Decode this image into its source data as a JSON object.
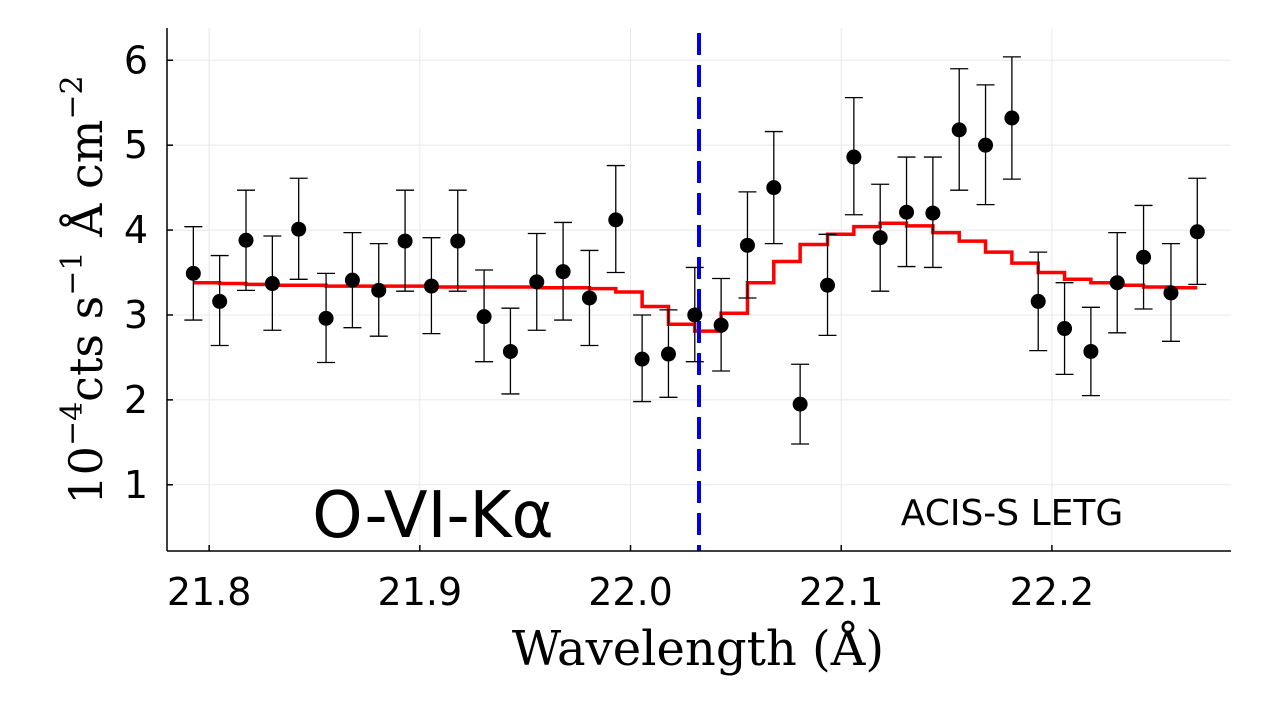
{
  "chart_data": {
    "type": "scatter",
    "title": "",
    "xlabel": "Wavelength (Å)",
    "ylabel": {
      "prefix": "10",
      "prefix_exp": "−4",
      "main": "cts s",
      "main_exp": "−1",
      "rest": " Å cm",
      "rest_exp": "−2"
    },
    "xlim": [
      21.78,
      22.285
    ],
    "ylim": [
      0.22,
      6.38
    ],
    "x_ticks": [
      21.8,
      21.9,
      22.0,
      22.1,
      22.2
    ],
    "x_tick_labels": [
      "21.8",
      "21.9",
      "22.0",
      "22.1",
      "22.2"
    ],
    "y_ticks": [
      1,
      2,
      3,
      4,
      5,
      6
    ],
    "y_tick_labels": [
      "1",
      "2",
      "3",
      "4",
      "5",
      "6"
    ],
    "grid": true,
    "annotations": {
      "line_label": "O-VI-Kα",
      "instrument": "ACIS-S LETG"
    },
    "vline": {
      "x": 22.0325,
      "color": "#0000e6",
      "style": "dashed"
    },
    "series": [
      {
        "kind": "points_with_errorbars",
        "color": "#000000",
        "x": [
          21.7925,
          21.805,
          21.8175,
          21.83,
          21.8425,
          21.8555,
          21.868,
          21.8805,
          21.893,
          21.9055,
          21.918,
          21.9305,
          21.943,
          21.9555,
          21.968,
          21.9805,
          21.993,
          22.0055,
          22.018,
          22.0305,
          22.043,
          22.0555,
          22.068,
          22.0805,
          22.0935,
          22.106,
          22.1185,
          22.131,
          22.1435,
          22.156,
          22.1685,
          22.181,
          22.1935,
          22.206,
          22.2185,
          22.231,
          22.2435,
          22.2565,
          22.269
        ],
        "y": [
          3.49,
          3.16,
          3.88,
          3.37,
          4.01,
          2.96,
          3.41,
          3.29,
          3.87,
          3.34,
          3.87,
          2.98,
          2.57,
          3.39,
          3.51,
          3.2,
          4.12,
          2.48,
          2.54,
          3.0,
          2.88,
          3.82,
          4.5,
          1.95,
          3.35,
          4.86,
          3.91,
          4.21,
          4.2,
          5.18,
          5.0,
          5.32,
          3.16,
          2.84,
          2.57,
          3.38,
          3.68,
          3.26,
          3.98
        ],
        "y_low": [
          2.94,
          2.64,
          3.29,
          2.82,
          3.42,
          2.44,
          2.85,
          2.75,
          3.28,
          2.78,
          3.28,
          2.45,
          2.07,
          2.82,
          2.94,
          2.64,
          3.5,
          1.98,
          2.03,
          2.45,
          2.34,
          3.2,
          3.84,
          1.48,
          2.76,
          4.18,
          3.28,
          3.57,
          3.56,
          4.47,
          4.3,
          4.6,
          2.58,
          2.3,
          2.05,
          2.79,
          3.07,
          2.69,
          3.36
        ],
        "y_high": [
          4.04,
          3.7,
          4.47,
          3.93,
          4.61,
          3.49,
          3.97,
          3.84,
          4.47,
          3.91,
          4.47,
          3.53,
          3.08,
          3.96,
          4.09,
          3.76,
          4.76,
          3.0,
          3.06,
          3.56,
          3.43,
          4.45,
          5.16,
          2.42,
          3.95,
          5.56,
          4.54,
          4.86,
          4.86,
          5.9,
          5.71,
          6.04,
          3.74,
          3.38,
          3.09,
          3.97,
          4.29,
          3.84,
          4.61
        ]
      },
      {
        "kind": "step_model",
        "color": "#ff0000",
        "edges": [
          21.7925,
          21.805,
          21.8175,
          21.83,
          21.8425,
          21.8555,
          21.868,
          21.8805,
          21.893,
          21.9055,
          21.918,
          21.9305,
          21.943,
          21.9555,
          21.968,
          21.9805,
          21.993,
          22.0055,
          22.018,
          22.0305,
          22.043,
          22.0555,
          22.068,
          22.0805,
          22.0935,
          22.106,
          22.1185,
          22.131,
          22.1435,
          22.156,
          22.1685,
          22.181,
          22.1935,
          22.206,
          22.2185,
          22.231,
          22.2435,
          22.2565,
          22.269
        ],
        "values": [
          3.38,
          3.37,
          3.36,
          3.35,
          3.35,
          3.34,
          3.34,
          3.34,
          3.34,
          3.33,
          3.33,
          3.33,
          3.33,
          3.32,
          3.32,
          3.31,
          3.27,
          3.1,
          2.89,
          2.81,
          3.02,
          3.38,
          3.63,
          3.83,
          3.95,
          4.04,
          4.08,
          4.05,
          3.97,
          3.87,
          3.74,
          3.61,
          3.5,
          3.42,
          3.38,
          3.35,
          3.33,
          3.32
        ]
      }
    ]
  }
}
